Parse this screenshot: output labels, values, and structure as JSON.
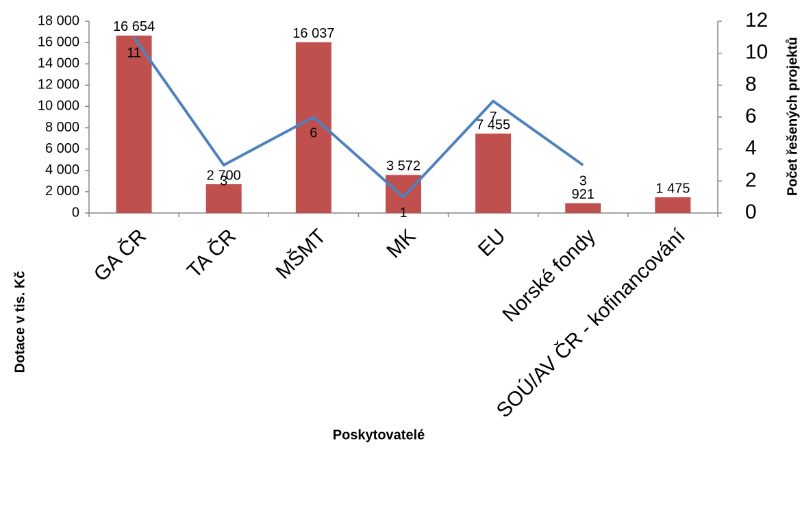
{
  "chart_data": {
    "type": "bar_line",
    "x_label": "Poskytovatelé",
    "y_label": "Dotace v tis. Kč",
    "y2_label": "Počet řešených projektů",
    "categories": [
      "GA ČR",
      "TA ČR",
      "MŠMT",
      "MK",
      "EU",
      "Norské fondy",
      "SOÚ/AV ČR - kofinancování"
    ],
    "series": [
      {
        "type": "bar",
        "color": "#c0504d",
        "values": [
          16654,
          2700,
          16037,
          3572,
          7455,
          921,
          1475
        ],
        "value_labels": [
          "16 654",
          "2 700",
          "16 037",
          "3 572",
          "7 455",
          "921",
          "1 475"
        ]
      },
      {
        "type": "line",
        "color": "#4f81bd",
        "axis": "y2",
        "values": [
          11,
          3,
          6,
          1,
          7,
          3,
          null
        ]
      }
    ],
    "ylim": [
      0,
      18000
    ],
    "yticks": [
      0,
      {
        "value": 2000,
        "label": "2 000"
      },
      {
        "value": 4000,
        "label": "4 000"
      },
      {
        "value": 6000,
        "label": "6 000"
      },
      {
        "value": 8000,
        "label": "8 000"
      },
      {
        "value": 10000,
        "label": "10 000"
      },
      {
        "value": 12000,
        "label": "12 000"
      },
      {
        "value": 14000,
        "label": "14 000"
      },
      {
        "value": 16000,
        "label": "16 000"
      },
      {
        "value": 18000,
        "label": "18 000"
      }
    ],
    "y2lim": [
      0,
      12
    ],
    "y2ticks": [
      0,
      2,
      4,
      6,
      8,
      10,
      12
    ],
    "grid": false
  }
}
